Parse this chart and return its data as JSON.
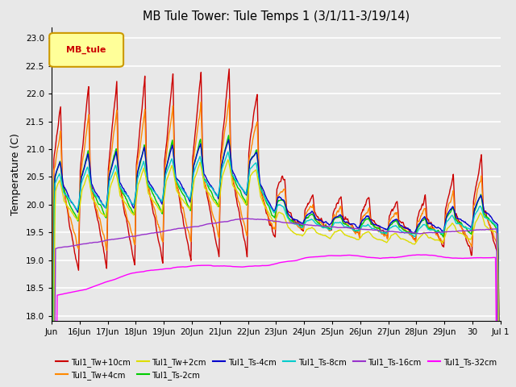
{
  "title": "MB Tule Tower: Tule Temps 1 (3/1/11-3/19/14)",
  "ylabel": "Temperature (C)",
  "ylim": [
    17.9,
    23.2
  ],
  "yticks": [
    18.0,
    18.5,
    19.0,
    19.5,
    20.0,
    20.5,
    21.0,
    21.5,
    22.0,
    22.5,
    23.0
  ],
  "legend_box_label": "MB_tule",
  "series_colors": {
    "Tul1_Tw+10cm": "#cc0000",
    "Tul1_Tw+4cm": "#ff8800",
    "Tul1_Tw+2cm": "#dddd00",
    "Tul1_Ts-2cm": "#00cc00",
    "Tul1_Ts-4cm": "#0000cc",
    "Tul1_Ts-8cm": "#00cccc",
    "Tul1_Ts-16cm": "#9933cc",
    "Tul1_Ts-32cm": "#ff00ff"
  },
  "n_points": 800,
  "x_start": 0,
  "x_end": 16,
  "xtick_positions": [
    0,
    1,
    2,
    3,
    4,
    5,
    6,
    7,
    8,
    9,
    10,
    11,
    12,
    13,
    14,
    15,
    16
  ],
  "xtick_labels": [
    "Jun",
    "16Jun",
    "17Jun",
    "18Jun",
    "19Jun",
    "20Jun",
    "21Jun",
    "22Jun",
    "23Jun",
    "24Jun",
    "25Jun",
    "26Jun",
    "27Jun",
    "28Jun",
    "29Jun",
    "30",
    "Jul 1"
  ],
  "background_color": "#e8e8e8",
  "grid_color": "#ffffff",
  "fig_facecolor": "#e8e8e8"
}
